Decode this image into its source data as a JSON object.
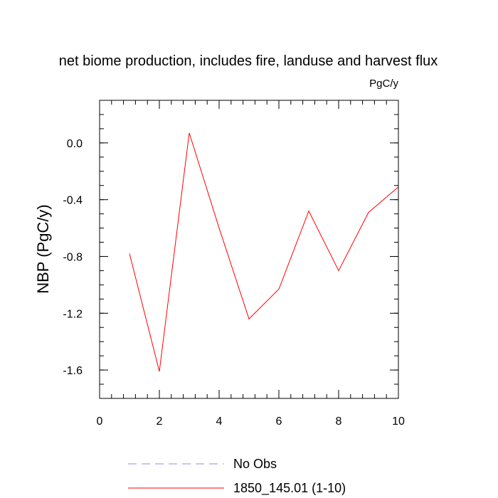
{
  "chart_data": {
    "type": "line",
    "title": "net biome production, includes fire, landuse and harvest flux",
    "units_label": "PgC/y",
    "ylabel": "NBP  (PgC/y)",
    "xlabel": "",
    "xlim": [
      0,
      10
    ],
    "ylim": [
      -1.8,
      0.3
    ],
    "xticks": [
      0,
      2,
      4,
      6,
      8,
      10
    ],
    "xtick_labels": [
      "0",
      "2",
      "4",
      "6",
      "8",
      "10"
    ],
    "yticks": [
      0.0,
      -0.4,
      -0.8,
      -1.2,
      -1.6
    ],
    "ytick_labels": [
      "0.0",
      "-0.4",
      "-0.8",
      "-1.2",
      "-1.6"
    ],
    "grid": false,
    "legend_placement": "bottom",
    "series": [
      {
        "name": "No Obs",
        "color": "#8c8cf0",
        "dashed": true,
        "x": [],
        "values": []
      },
      {
        "name": "1850_145.01 (1-10)",
        "color": "#ff0000",
        "dashed": false,
        "x": [
          1,
          2,
          3,
          4,
          5,
          6,
          7,
          8,
          9,
          10
        ],
        "values": [
          -0.78,
          -1.61,
          0.07,
          -0.6,
          -1.24,
          -1.03,
          -0.48,
          -0.9,
          -0.49,
          -0.31
        ]
      }
    ]
  }
}
